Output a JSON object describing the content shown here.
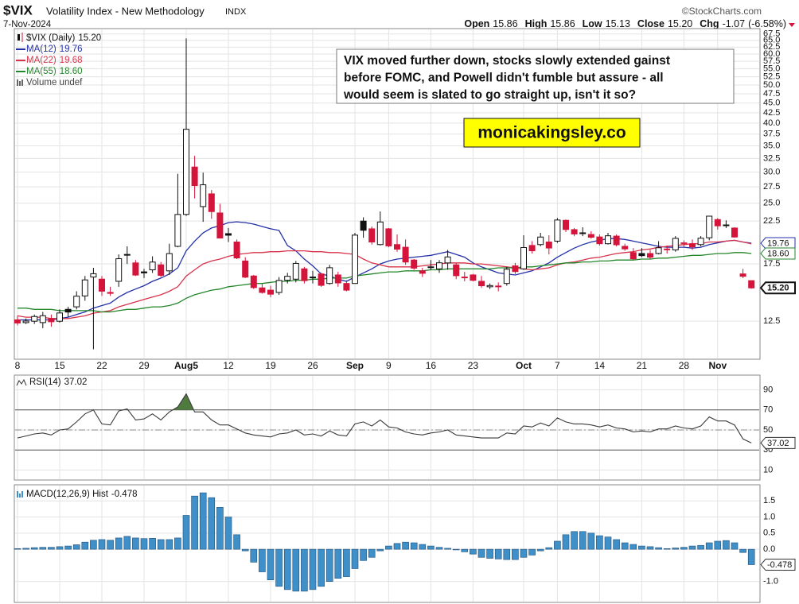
{
  "header": {
    "symbol": "$VIX",
    "name": "Volatility Index - New Methodology",
    "exchange": "INDX",
    "date": "7-Nov-2024",
    "source": "©StockCharts.com",
    "open_label": "Open",
    "high_label": "High",
    "low_label": "Low",
    "close_label": "Close",
    "change_label": "Chg",
    "change": -1.07,
    "change_pct": "(-6.58%)"
  },
  "chart_data": [
    {
      "type": "candlestick",
      "title": "$VIX (Daily)",
      "log_scale": true,
      "grid": true,
      "up_color": "#111111",
      "down_color": "#d4143a",
      "categories": [
        "8",
        null,
        null,
        null,
        null,
        "15",
        null,
        null,
        null,
        null,
        "22",
        null,
        null,
        null,
        null,
        "29",
        null,
        null,
        null,
        null,
        "Aug5",
        null,
        null,
        null,
        null,
        "12",
        null,
        null,
        null,
        null,
        "19",
        null,
        null,
        null,
        null,
        "26",
        null,
        null,
        null,
        null,
        "Sep",
        null,
        null,
        null,
        "9",
        null,
        null,
        null,
        null,
        "16",
        null,
        null,
        null,
        null,
        "23",
        null,
        null,
        null,
        null,
        null,
        "Oct",
        null,
        null,
        null,
        "7",
        null,
        null,
        null,
        null,
        "14",
        null,
        null,
        null,
        null,
        "21",
        null,
        null,
        null,
        null,
        "28",
        null,
        null,
        null,
        "Nov",
        null,
        null,
        null,
        null
      ],
      "open": [
        12.6,
        12.4,
        12.5,
        12.4,
        12.7,
        12.5,
        13.4,
        13.6,
        14.5,
        16.2,
        16.0,
        14.8,
        15.8,
        18.5,
        17.6,
        16.7,
        16.9,
        17.4,
        16.8,
        19.4,
        23.4,
        30.9,
        24.5,
        26.4,
        23.6,
        20.9,
        19.9,
        17.8,
        16.3,
        15.2,
        15.0,
        14.8,
        15.9,
        16.0,
        17.0,
        16.2,
        16.5,
        15.6,
        16.4,
        15.6,
        15.6,
        22.5,
        21.5,
        19.6,
        21.5,
        19.6,
        19.3,
        17.9,
        16.8,
        17.2,
        17.0,
        17.6,
        17.4,
        16.2,
        16.4,
        15.8,
        15.3,
        15.3,
        15.6,
        17.3,
        17.0,
        19.5,
        19.6,
        19.9,
        20.0,
        22.6,
        21.4,
        21.0,
        20.8,
        20.5,
        19.7,
        20.6,
        19.4,
        18.7,
        18.6,
        18.6,
        18.6,
        19.1,
        19.0,
        19.7,
        19.7,
        19.6,
        20.4,
        22.7,
        22.0,
        21.6,
        16.5,
        15.86
      ],
      "high": [
        12.9,
        12.7,
        13.0,
        13.2,
        13.0,
        13.4,
        13.6,
        14.9,
        16.3,
        17.1,
        16.3,
        15.3,
        18.5,
        19.4,
        17.9,
        17.0,
        18.3,
        17.7,
        19.7,
        29.7,
        65.73,
        33.0,
        29.9,
        27.0,
        24.9,
        21.6,
        20.2,
        18.2,
        16.4,
        15.6,
        15.4,
        16.2,
        16.6,
        17.8,
        17.2,
        16.8,
        16.6,
        17.4,
        16.7,
        15.9,
        21.0,
        23.0,
        21.8,
        23.8,
        21.6,
        20.8,
        20.2,
        18.0,
        17.1,
        17.9,
        17.9,
        19.0,
        17.6,
        16.7,
        16.5,
        16.3,
        15.6,
        15.7,
        17.2,
        17.6,
        20.7,
        20.0,
        21.0,
        20.7,
        22.9,
        22.7,
        21.6,
        21.7,
        21.2,
        20.8,
        21.0,
        20.8,
        19.7,
        19.2,
        19.2,
        19.0,
        20.0,
        19.5,
        20.6,
        20.1,
        20.2,
        20.6,
        23.2,
        22.9,
        22.6,
        21.7,
        17.0,
        15.86
      ],
      "low": [
        12.2,
        12.3,
        12.3,
        12.0,
        12.1,
        12.4,
        12.8,
        13.4,
        14.1,
        10.6,
        14.5,
        14.5,
        15.3,
        17.5,
        16.3,
        16.1,
        16.6,
        16.2,
        16.4,
        19.3,
        23.2,
        25.7,
        22.4,
        22.8,
        20.3,
        19.9,
        18.0,
        16.1,
        15.1,
        14.7,
        14.4,
        14.6,
        15.6,
        15.7,
        15.6,
        15.6,
        15.3,
        15.5,
        15.3,
        14.9,
        15.6,
        20.4,
        19.6,
        19.5,
        19.3,
        18.8,
        17.4,
        16.9,
        16.2,
        16.9,
        16.6,
        16.9,
        16.0,
        15.8,
        15.8,
        15.2,
        15.1,
        14.9,
        15.4,
        16.5,
        16.9,
        18.6,
        19.4,
        18.5,
        19.8,
        21.1,
        20.6,
        20.6,
        20.3,
        19.5,
        19.6,
        19.4,
        18.9,
        17.9,
        18.2,
        18.0,
        18.5,
        18.6,
        18.8,
        19.3,
        19.0,
        19.4,
        20.1,
        21.4,
        21.6,
        20.4,
        16.1,
        15.13
      ],
      "close": [
        12.37,
        12.51,
        12.85,
        12.91,
        12.46,
        13.12,
        13.19,
        14.48,
        15.93,
        16.52,
        14.91,
        14.72,
        18.04,
        18.46,
        16.39,
        16.6,
        17.69,
        16.36,
        18.59,
        23.39,
        38.57,
        27.71,
        27.85,
        23.79,
        20.37,
        20.71,
        18.12,
        16.19,
        15.23,
        14.8,
        14.65,
        15.88,
        16.27,
        17.55,
        15.86,
        16.15,
        15.43,
        17.11,
        15.65,
        15.0,
        20.72,
        21.32,
        19.9,
        22.38,
        19.45,
        19.08,
        17.69,
        17.07,
        16.56,
        17.14,
        17.61,
        18.23,
        16.33,
        16.15,
        15.89,
        15.39,
        15.41,
        15.37,
        16.96,
        16.73,
        19.26,
        18.9,
        20.49,
        19.21,
        22.64,
        21.42,
        20.86,
        20.93,
        20.46,
        19.7,
        20.64,
        19.58,
        19.11,
        18.03,
        18.37,
        18.2,
        19.24,
        19.08,
        20.33,
        19.8,
        19.34,
        20.35,
        23.16,
        21.88,
        21.98,
        20.49,
        16.27,
        15.2
      ],
      "close_labels": [
        null,
        null,
        null,
        null,
        null,
        null,
        null,
        null,
        null,
        null,
        null,
        null,
        null,
        null,
        null,
        null,
        null,
        null,
        null,
        null,
        null,
        null,
        null,
        null,
        null,
        null,
        null,
        null,
        null,
        null,
        null,
        null,
        null,
        null,
        null,
        null,
        null,
        null,
        null,
        null,
        null,
        null,
        null,
        null,
        null,
        null,
        null,
        null,
        null,
        null,
        null,
        null,
        null,
        null,
        null,
        null,
        null,
        null,
        null,
        null,
        null,
        null,
        null,
        null,
        null,
        null,
        null,
        null,
        null,
        null,
        null,
        null,
        null,
        null,
        null,
        null,
        null,
        null,
        null,
        null,
        null,
        null,
        null,
        null,
        null,
        null,
        null,
        "15.20"
      ],
      "series": [
        {
          "name": "MA(12)",
          "color": "#2330a8",
          "values": [
            12.6,
            12.6,
            12.6,
            12.6,
            12.6,
            12.7,
            12.8,
            13.0,
            13.2,
            13.5,
            13.7,
            13.9,
            14.4,
            14.8,
            15.1,
            15.4,
            15.8,
            16.1,
            16.5,
            17.1,
            18.9,
            20.0,
            21.0,
            21.6,
            21.9,
            22.3,
            22.4,
            22.3,
            22.1,
            21.8,
            21.5,
            21.3,
            19.5,
            18.9,
            18.0,
            17.3,
            16.5,
            16.3,
            16.0,
            15.8,
            16.2,
            16.6,
            17.0,
            17.5,
            17.8,
            18.0,
            18.1,
            18.2,
            18.3,
            18.4,
            18.6,
            18.8,
            18.5,
            18.2,
            17.6,
            17.2,
            16.9,
            16.6,
            16.5,
            16.4,
            16.6,
            16.8,
            17.2,
            17.6,
            18.2,
            18.7,
            19.2,
            19.6,
            19.9,
            20.1,
            20.3,
            20.3,
            20.2,
            20.0,
            19.8,
            19.6,
            19.4,
            19.3,
            19.3,
            19.3,
            19.2,
            19.3,
            19.6,
            19.8,
            20.0,
            20.1,
            19.9,
            19.76
          ]
        },
        {
          "name": "MA(22)",
          "color": "#d8334a",
          "values": [
            12.9,
            12.8,
            12.8,
            12.8,
            12.7,
            12.7,
            12.7,
            12.8,
            12.9,
            13.1,
            13.2,
            13.3,
            13.6,
            13.8,
            14.0,
            14.2,
            14.4,
            14.6,
            14.9,
            15.3,
            16.3,
            16.9,
            17.5,
            17.8,
            18.0,
            18.3,
            18.5,
            18.6,
            18.7,
            18.7,
            18.8,
            18.8,
            18.9,
            18.9,
            18.9,
            18.8,
            18.8,
            18.7,
            18.7,
            18.6,
            18.5,
            18.0,
            17.6,
            17.4,
            17.2,
            17.2,
            17.2,
            17.2,
            17.3,
            17.4,
            17.5,
            17.6,
            17.6,
            17.6,
            17.5,
            17.5,
            17.4,
            17.3,
            17.2,
            17.1,
            17.0,
            16.9,
            17.0,
            17.1,
            17.4,
            17.6,
            17.7,
            17.9,
            18.1,
            18.2,
            18.4,
            18.6,
            18.7,
            18.8,
            19.0,
            19.1,
            19.3,
            19.4,
            19.5,
            19.6,
            19.7,
            19.7,
            19.9,
            19.9,
            20.0,
            20.1,
            19.9,
            19.68
          ]
        },
        {
          "name": "MA(55)",
          "color": "#23862a",
          "values": [
            13.5,
            13.5,
            13.4,
            13.4,
            13.4,
            13.3,
            13.3,
            13.3,
            13.3,
            13.3,
            13.2,
            13.2,
            13.3,
            13.4,
            13.4,
            13.5,
            13.6,
            13.6,
            13.7,
            13.9,
            14.3,
            14.6,
            14.8,
            15.0,
            15.1,
            15.3,
            15.4,
            15.5,
            15.6,
            15.6,
            15.7,
            15.8,
            15.8,
            15.9,
            15.9,
            16.0,
            16.0,
            16.1,
            16.1,
            16.1,
            16.3,
            16.4,
            16.5,
            16.6,
            16.7,
            16.7,
            16.8,
            16.8,
            16.8,
            16.9,
            16.9,
            17.0,
            17.0,
            17.0,
            17.0,
            17.0,
            17.0,
            17.1,
            17.1,
            17.1,
            17.2,
            17.2,
            17.3,
            17.4,
            17.5,
            17.6,
            17.6,
            17.7,
            17.7,
            17.8,
            17.8,
            17.9,
            17.9,
            17.9,
            18.0,
            18.0,
            18.1,
            18.1,
            18.2,
            18.3,
            18.4,
            18.4,
            18.5,
            18.6,
            18.6,
            18.7,
            18.7,
            18.6
          ],
          "value_labels": [
            null,
            null,
            null,
            null,
            null,
            null,
            null,
            null,
            null,
            null,
            null,
            null,
            null,
            null,
            null,
            null,
            null,
            null,
            null,
            null,
            null,
            null,
            null,
            null,
            null,
            null,
            null,
            null,
            null,
            null,
            null,
            null,
            null,
            null,
            null,
            null,
            null,
            null,
            null,
            null,
            null,
            null,
            null,
            null,
            null,
            null,
            null,
            null,
            null,
            null,
            null,
            null,
            null,
            null,
            null,
            null,
            null,
            null,
            null,
            null,
            null,
            null,
            null,
            null,
            null,
            null,
            null,
            null,
            null,
            null,
            null,
            null,
            null,
            null,
            null,
            null,
            null,
            null,
            null,
            null,
            null,
            null,
            null,
            null,
            null,
            null,
            null,
            "18.60"
          ]
        }
      ],
      "volume_note": "Volume undef",
      "ylim": [
        10,
        69
      ],
      "yticks": [
        12.5,
        17.5,
        22.5,
        {
          "value": 25,
          "label": "25.0"
        },
        27.5,
        {
          "value": 30,
          "label": "30.0"
        },
        32.5,
        {
          "value": 35,
          "label": "35.0"
        },
        37.5,
        {
          "value": 40,
          "label": "40.0"
        },
        42.5,
        {
          "value": 45,
          "label": "45.0"
        },
        47.5,
        {
          "value": 50,
          "label": "50.0"
        },
        52.5,
        {
          "value": 55,
          "label": "55.0"
        },
        57.5,
        {
          "value": 60,
          "label": "60.0"
        },
        62.5,
        {
          "value": 65,
          "label": "65.0"
        },
        67.5
      ],
      "annotation": [
        "VIX moved further down, stocks slowly extended gainst",
        "before FOMC, and Powell didn't fumble but assure - all",
        "would seem is slated to go straight up, isn't it so?"
      ],
      "watermark": "monicakingsley.co"
    },
    {
      "type": "line",
      "title": "RSI(14)",
      "color": "#3a3a3a",
      "fill_color": "#4f7b3f",
      "grid": true,
      "values": [
        42,
        44,
        46,
        47,
        45,
        50,
        51,
        58,
        66,
        70,
        56,
        55,
        69,
        71,
        60,
        61,
        66,
        60,
        68,
        73,
        86,
        68,
        68,
        60,
        55,
        55,
        51,
        47,
        45,
        44,
        43,
        46,
        47,
        50,
        45,
        46,
        44,
        49,
        45,
        44,
        56,
        58,
        54,
        60,
        53,
        52,
        48,
        46,
        45,
        47,
        48,
        50,
        45,
        44,
        43,
        42,
        42,
        42,
        47,
        46,
        54,
        53,
        57,
        54,
        62,
        58,
        56,
        56,
        55,
        53,
        55,
        52,
        51,
        48,
        49,
        48,
        51,
        51,
        54,
        52,
        51,
        54,
        63,
        59,
        59,
        55,
        41,
        37.02
      ],
      "overbought": 70,
      "oversold": 30,
      "ylim": [
        0,
        100
      ],
      "yticks": [
        90,
        70,
        50,
        30,
        10
      ]
    },
    {
      "type": "bar",
      "title": "MACD(12,26,9) Hist",
      "color": "#3f8fc9",
      "grid": true,
      "values": [
        0.02,
        0.03,
        0.05,
        0.06,
        0.06,
        0.08,
        0.1,
        0.14,
        0.22,
        0.28,
        0.3,
        0.28,
        0.35,
        0.4,
        0.35,
        0.33,
        0.34,
        0.3,
        0.3,
        0.35,
        1.05,
        1.65,
        1.75,
        1.6,
        1.3,
        1.0,
        0.45,
        -0.05,
        -0.4,
        -0.7,
        -0.95,
        -1.15,
        -1.25,
        -1.3,
        -1.3,
        -1.25,
        -1.15,
        -1.0,
        -0.9,
        -0.85,
        -0.6,
        -0.35,
        -0.25,
        -0.05,
        0.1,
        0.18,
        0.22,
        0.2,
        0.15,
        0.1,
        0.06,
        0.03,
        -0.02,
        -0.08,
        -0.15,
        -0.25,
        -0.28,
        -0.3,
        -0.32,
        -0.32,
        -0.25,
        -0.18,
        -0.05,
        0.05,
        0.25,
        0.45,
        0.55,
        0.55,
        0.5,
        0.42,
        0.38,
        0.3,
        0.2,
        0.15,
        0.1,
        0.08,
        0.05,
        0.02,
        0.04,
        0.06,
        0.1,
        0.12,
        0.2,
        0.25,
        0.27,
        0.2,
        -0.1,
        -0.478
      ],
      "ylim": [
        -1.5,
        1.9
      ],
      "yticks": [
        1.5,
        {
          "value": 1,
          "label": "1.0"
        },
        0.5,
        {
          "value": 0,
          "label": "0.0"
        },
        {
          "value": -1,
          "label": "-1.0"
        }
      ]
    }
  ]
}
